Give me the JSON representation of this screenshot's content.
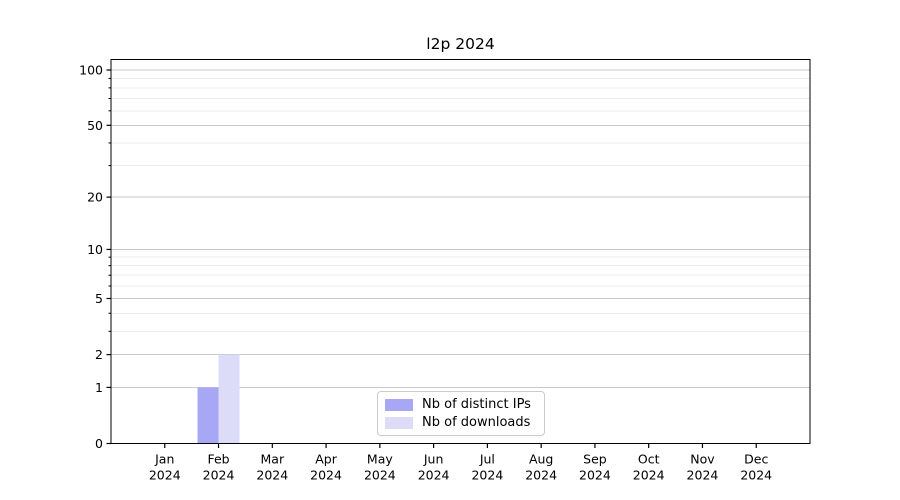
{
  "title": "l2p 2024",
  "chart_data": {
    "type": "bar",
    "title": "l2p 2024",
    "categories": [
      "Jan",
      "Feb",
      "Mar",
      "Apr",
      "May",
      "Jun",
      "Jul",
      "Aug",
      "Sep",
      "Oct",
      "Nov",
      "Dec"
    ],
    "year": "2024",
    "series": [
      {
        "name": "Nb of distinct IPs",
        "color": "#a7a7f6",
        "values": [
          0,
          1,
          0,
          0,
          0,
          0,
          0,
          0,
          0,
          0,
          0,
          0
        ]
      },
      {
        "name": "Nb of downloads",
        "color": "#dcdcf9",
        "values": [
          0,
          2,
          0,
          0,
          0,
          0,
          0,
          0,
          0,
          0,
          0,
          0
        ]
      }
    ],
    "xlabel": "",
    "ylabel": "",
    "yscale": "log1p",
    "ylim": [
      0,
      114
    ],
    "yticks": [
      0,
      1,
      2,
      5,
      10,
      20,
      50,
      100
    ],
    "minor_yticks": [
      3,
      4,
      6,
      7,
      8,
      9,
      30,
      40,
      60,
      70,
      80,
      90
    ],
    "grid": true,
    "legend_position": "lower center",
    "colors": {
      "grid_major": "#c9c9c9",
      "grid_minor": "#ededed",
      "axis": "#000000",
      "text": "#000000"
    }
  }
}
